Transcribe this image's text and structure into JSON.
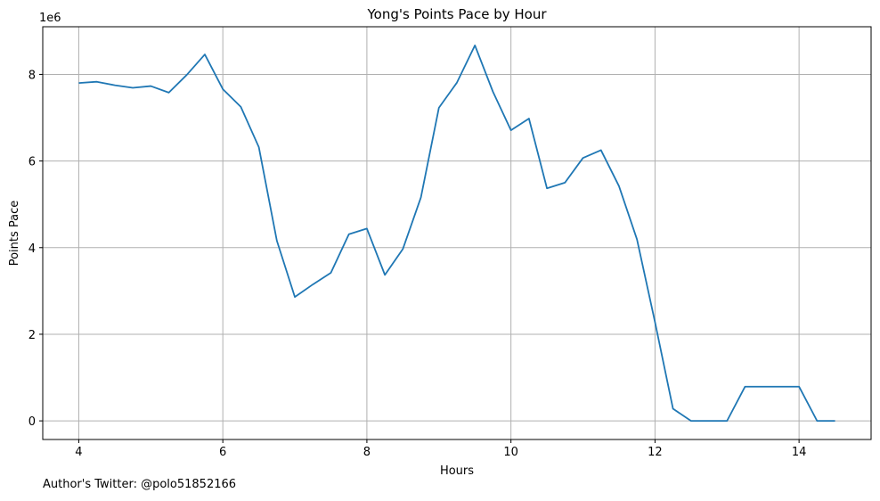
{
  "chart_data": {
    "type": "line",
    "title": "Yong's Points Pace by Hour",
    "xlabel": "Hours",
    "ylabel": "Points Pace",
    "y_scale_label": "1e6",
    "xlim": [
      3.5,
      15.0
    ],
    "ylim": [
      -0.43,
      9.1
    ],
    "y_multiplier": 1000000,
    "x_ticks": [
      4,
      6,
      8,
      10,
      12,
      14
    ],
    "y_ticks": [
      0,
      2,
      4,
      6,
      8
    ],
    "grid": true,
    "series": [
      {
        "color": "#1f77b4",
        "x": [
          4.0,
          4.25,
          4.5,
          4.75,
          5.0,
          5.25,
          5.5,
          5.75,
          6.0,
          6.25,
          6.5,
          6.75,
          7.0,
          7.25,
          7.5,
          7.75,
          8.0,
          8.25,
          8.5,
          8.75,
          9.0,
          9.25,
          9.5,
          9.75,
          10.0,
          10.25,
          10.5,
          10.75,
          11.0,
          11.25,
          11.5,
          11.75,
          12.0,
          12.25,
          12.5,
          12.75,
          13.0,
          13.25,
          13.5,
          13.75,
          14.0,
          14.25,
          14.5
        ],
        "values": [
          7.8,
          7.83,
          7.75,
          7.69,
          7.73,
          7.58,
          7.99,
          8.46,
          7.66,
          7.25,
          6.32,
          4.16,
          2.86,
          3.15,
          3.42,
          4.31,
          4.44,
          3.37,
          3.97,
          5.16,
          7.23,
          7.81,
          8.67,
          7.6,
          6.71,
          6.98,
          5.37,
          5.5,
          6.07,
          6.25,
          5.42,
          4.19,
          2.28,
          0.28,
          0.0,
          0.0,
          0.0,
          0.79,
          0.79,
          0.79,
          0.79,
          0.0,
          0.0
        ]
      }
    ]
  },
  "footnote": "Author's Twitter: @polo51852166"
}
